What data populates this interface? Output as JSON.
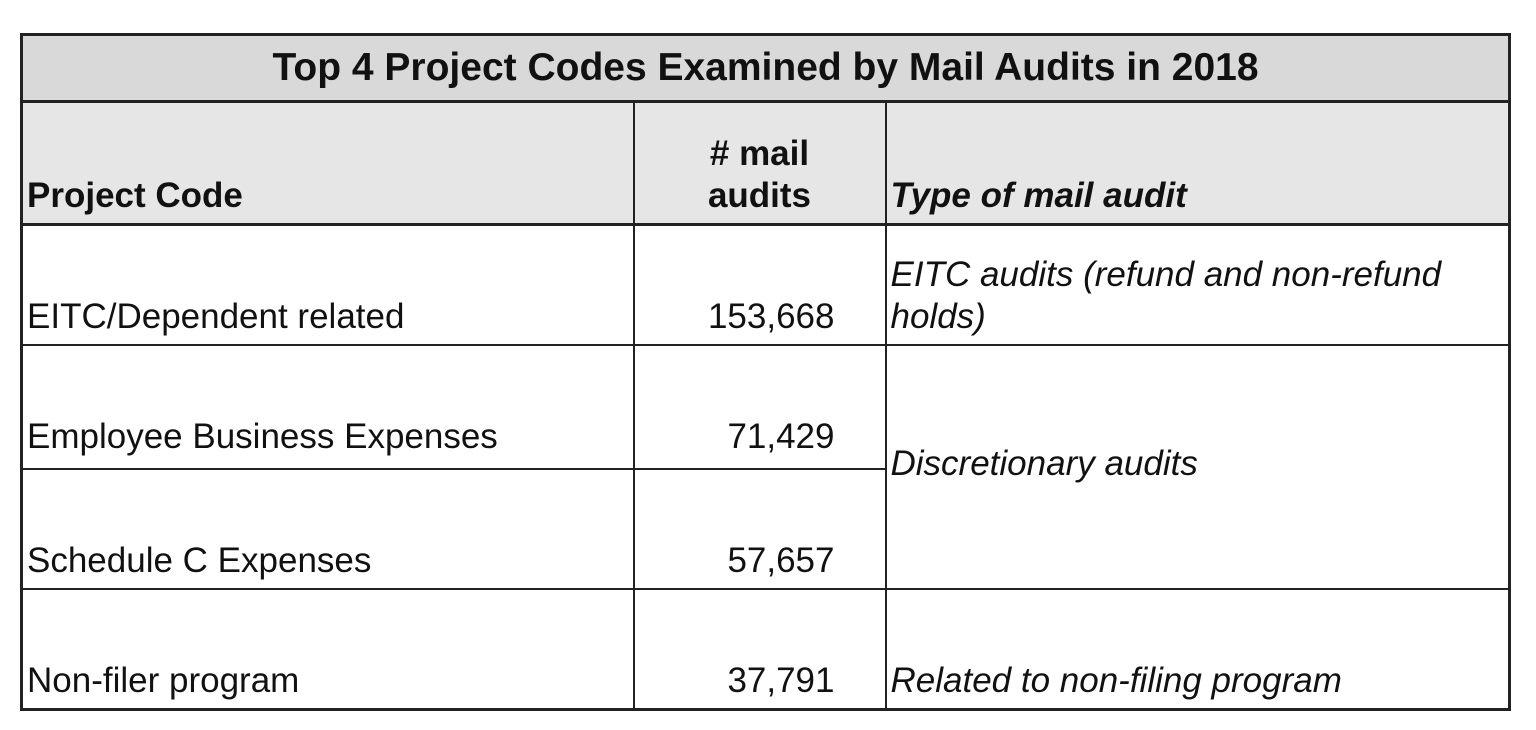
{
  "chart_data": {
    "type": "table",
    "title": "Top 4 Project Codes Examined by Mail Audits in 2018",
    "columns": [
      "Project Code",
      "# mail audits",
      "Type of mail audit"
    ],
    "rows": [
      {
        "project_code": "EITC/Dependent related",
        "mail_audits": "153,668",
        "type": "EITC audits (refund and non-refund holds)"
      },
      {
        "project_code": "Employee Business Expenses",
        "mail_audits": "71,429",
        "type": "Discretionary audits"
      },
      {
        "project_code": "Schedule C Expenses",
        "mail_audits": "57,657",
        "type": "Discretionary audits"
      },
      {
        "project_code": "Non-filer program",
        "mail_audits": "37,791",
        "type": "Related to non-filing program"
      }
    ],
    "header_colors": {
      "title": "#d9d9d9",
      "columns": "#e6e6e6"
    }
  }
}
